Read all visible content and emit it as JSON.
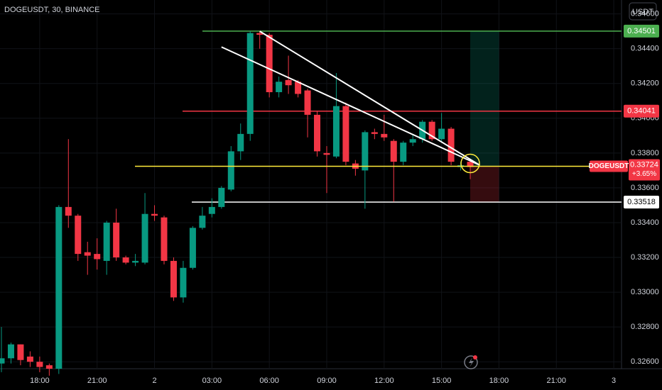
{
  "chart_data": {
    "type": "candlestick",
    "title": "DOGEUSDT, 30, BINANCE",
    "currency": "USDT",
    "symbol": "DOGEUSDT",
    "change_label": "+3.65%",
    "up_color": "#089981",
    "down_color": "#f23645",
    "candles": {
      "open": [
        0.3259,
        0.3262,
        0.327,
        0.3263,
        0.326,
        0.3258,
        0.3256,
        0.3349,
        0.3344,
        0.3323,
        0.3322,
        0.3318,
        0.334,
        0.332,
        0.3317,
        0.3317,
        0.3345,
        0.3343,
        0.3318,
        0.3297,
        0.3314,
        0.3337,
        0.3345,
        0.3349,
        0.3359,
        0.3381,
        0.3391,
        0.3449,
        0.3448,
        0.3415,
        0.3422,
        0.3421,
        0.3416,
        0.3402,
        0.338,
        0.3378,
        0.3407,
        0.3374,
        0.337,
        0.3392,
        0.3391,
        0.3387,
        0.3375,
        0.3386,
        0.3388,
        0.3398,
        0.3388,
        0.3394,
        0.3372,
        0.3375
      ],
      "high": [
        0.328,
        0.3271,
        0.327,
        0.3266,
        0.3263,
        0.3259,
        0.335,
        0.3388,
        0.3345,
        0.3329,
        0.3331,
        0.3341,
        0.3348,
        0.3321,
        0.3322,
        0.3357,
        0.335,
        0.3344,
        0.332,
        0.3318,
        0.3338,
        0.3349,
        0.3354,
        0.3361,
        0.3384,
        0.3397,
        0.345,
        0.345,
        0.3449,
        0.3424,
        0.3436,
        0.3422,
        0.3417,
        0.3404,
        0.3384,
        0.3426,
        0.3409,
        0.3376,
        0.3393,
        0.3394,
        0.3402,
        0.3388,
        0.3387,
        0.3391,
        0.3399,
        0.3399,
        0.3403,
        0.3395,
        0.3375,
        0.3376
      ],
      "low": [
        0.3254,
        0.3259,
        0.3258,
        0.3257,
        0.3254,
        0.3252,
        0.3253,
        0.3337,
        0.3318,
        0.331,
        0.3313,
        0.331,
        0.3318,
        0.3316,
        0.3315,
        0.3316,
        0.3341,
        0.3316,
        0.3295,
        0.3294,
        0.3313,
        0.3336,
        0.3343,
        0.3348,
        0.3358,
        0.3376,
        0.3387,
        0.344,
        0.3412,
        0.3412,
        0.3414,
        0.3412,
        0.3389,
        0.3378,
        0.3357,
        0.3377,
        0.3373,
        0.3367,
        0.3348,
        0.3388,
        0.3387,
        0.3352,
        0.3373,
        0.3384,
        0.3386,
        0.3387,
        0.3386,
        0.3373,
        0.337,
        0.3365
      ],
      "close": [
        0.3262,
        0.327,
        0.3261,
        0.326,
        0.3257,
        0.3256,
        0.3349,
        0.3344,
        0.3322,
        0.3321,
        0.3319,
        0.334,
        0.332,
        0.3317,
        0.3318,
        0.3345,
        0.3344,
        0.3318,
        0.3297,
        0.3314,
        0.3337,
        0.3344,
        0.3349,
        0.336,
        0.3381,
        0.3391,
        0.3449,
        0.3448,
        0.3415,
        0.3421,
        0.3419,
        0.3414,
        0.3402,
        0.3381,
        0.3379,
        0.3407,
        0.3375,
        0.3371,
        0.3392,
        0.3391,
        0.3389,
        0.3375,
        0.3386,
        0.3388,
        0.3398,
        0.3388,
        0.3394,
        0.3375,
        0.3373,
        0.3372
      ]
    },
    "xticks": [
      {
        "value": 4,
        "label": "18:00"
      },
      {
        "value": 10,
        "label": "21:00"
      },
      {
        "value": 16,
        "label": "2"
      },
      {
        "value": 22,
        "label": "03:00"
      },
      {
        "value": 28,
        "label": "06:00"
      },
      {
        "value": 34,
        "label": "09:00"
      },
      {
        "value": 40,
        "label": "12:00"
      },
      {
        "value": 46,
        "label": "15:00"
      },
      {
        "value": 52,
        "label": "18:00"
      },
      {
        "value": 58,
        "label": "21:00"
      },
      {
        "value": 64,
        "label": "3"
      }
    ],
    "ylim": [
      0.3256,
      0.3468
    ],
    "yticks": [
      {
        "value": 0.326,
        "label": "0.32600"
      },
      {
        "value": 0.328,
        "label": "0.32800"
      },
      {
        "value": 0.33,
        "label": "0.33000"
      },
      {
        "value": 0.332,
        "label": "0.33200"
      },
      {
        "value": 0.334,
        "label": "0.33400"
      },
      {
        "value": 0.336,
        "label": "0.33600"
      },
      {
        "value": 0.338,
        "label": "0.33800"
      },
      {
        "value": 0.34,
        "label": "0.34000"
      },
      {
        "value": 0.342,
        "label": "0.34200"
      },
      {
        "value": 0.344,
        "label": "0.34400"
      },
      {
        "value": 0.346,
        "label": "0.34600"
      }
    ],
    "levels": [
      {
        "value": 0.34501,
        "color": "#4caf50"
      },
      {
        "value": 0.34041,
        "color": "#f23645"
      },
      {
        "value": 0.33518,
        "color": "#ffffff"
      }
    ],
    "last_price": 0.33724,
    "last_line_color": "#ffeb3b",
    "trendlines": [
      {
        "from": [
          27,
          0.345
        ],
        "to": [
          50,
          0.3373
        ]
      },
      {
        "from": [
          23,
          0.3441
        ],
        "to": [
          50,
          0.3373
        ]
      }
    ],
    "position": {
      "start": 49,
      "end": 52,
      "entry": 0.33724,
      "target": 0.34501,
      "stop": 0.33518
    }
  }
}
